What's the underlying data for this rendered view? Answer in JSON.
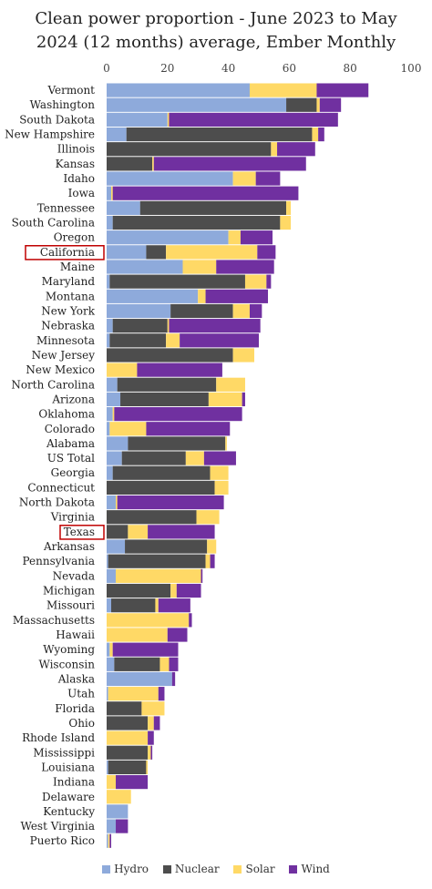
{
  "chart_data": {
    "type": "bar",
    "orientation": "horizontal",
    "stacked": true,
    "title": "Clean power proportion - June 2023 to May 2024 (12 months) average, Ember Monthly",
    "title_lines": [
      "Clean power proportion - June 2023 to May",
      "2024 (12 months) average, Ember Monthly"
    ],
    "xlabel": "",
    "ylabel": "",
    "xlim": [
      0,
      100
    ],
    "xticks": [
      0,
      20,
      40,
      60,
      80,
      100
    ],
    "xaxis_position": "top",
    "grid": false,
    "legend_position": "bottom",
    "highlighted": [
      "California",
      "Texas"
    ],
    "colors": {
      "Hydro": "#8eaadb",
      "Nuclear": "#4d4d4d",
      "Solar": "#ffd966",
      "Wind": "#7030a0",
      "highlight_box": "#c00000"
    },
    "categories": [
      "Vermont",
      "Washington",
      "South Dakota",
      "New Hampshire",
      "Illinois",
      "Kansas",
      "Idaho",
      "Iowa",
      "Tennessee",
      "South Carolina",
      "Oregon",
      "California",
      "Maine",
      "Maryland",
      "Montana",
      "New York",
      "Nebraska",
      "Minnesota",
      "New Jersey",
      "New Mexico",
      "North Carolina",
      "Arizona",
      "Oklahoma",
      "Colorado",
      "Alabama",
      "US Total",
      "Georgia",
      "Connecticut",
      "North Dakota",
      "Virginia",
      "Texas",
      "Arkansas",
      "Pennsylvania",
      "Nevada",
      "Michigan",
      "Missouri",
      "Massachusetts",
      "Hawaii",
      "Wyoming",
      "Wisconsin",
      "Alaska",
      "Utah",
      "Florida",
      "Ohio",
      "Rhode Island",
      "Mississippi",
      "Louisiana",
      "Indiana",
      "Delaware",
      "Kentucky",
      "West Virginia",
      "Puerto Rico"
    ],
    "series": [
      {
        "name": "Hydro",
        "values": [
          47,
          59,
          20,
          6.5,
          0,
          0,
          41.5,
          1.5,
          11,
          2,
          40,
          13,
          25,
          1,
          30,
          21,
          2,
          1,
          0,
          0,
          3.5,
          4.5,
          2,
          1,
          7,
          5,
          2,
          0,
          3,
          0,
          0,
          6,
          0.5,
          3,
          0,
          1.5,
          0,
          0,
          1,
          2.5,
          21.5,
          0.5,
          0,
          0,
          0,
          0,
          0.5,
          0,
          0,
          7,
          3,
          0.5
        ]
      },
      {
        "name": "Nuclear",
        "values": [
          0,
          10,
          0,
          61,
          54,
          15,
          0,
          0,
          48,
          55,
          0,
          6.5,
          0,
          44.5,
          0,
          20.5,
          18,
          18.5,
          41.5,
          0,
          32.5,
          29,
          0,
          0,
          32,
          21,
          32,
          35.5,
          0,
          29.5,
          7,
          27,
          32,
          0,
          21,
          14.5,
          0,
          0,
          0,
          15,
          0,
          0,
          11.5,
          13.5,
          0,
          13.5,
          12.5,
          0,
          0,
          0,
          0,
          0
        ]
      },
      {
        "name": "Solar",
        "values": [
          22,
          1,
          0.5,
          2,
          2,
          0.5,
          7.5,
          0.5,
          1.5,
          3.5,
          4,
          30,
          11,
          7,
          2.5,
          5.5,
          0.5,
          4.5,
          7,
          10,
          9.5,
          11,
          0.5,
          12,
          0.5,
          6,
          6,
          4.5,
          0.5,
          7.5,
          6.5,
          3,
          1.5,
          28,
          2,
          1,
          27,
          20,
          1,
          3,
          0,
          16.5,
          7.5,
          2,
          13.5,
          1,
          0.5,
          3,
          8,
          0,
          0,
          0.5
        ]
      },
      {
        "name": "Wind",
        "values": [
          17,
          7,
          55.5,
          2,
          12.5,
          50,
          8,
          61,
          0,
          0,
          10.5,
          6,
          19,
          1.5,
          20.5,
          4,
          30,
          26,
          0,
          28,
          0,
          1,
          42,
          27.5,
          0,
          10.5,
          0,
          0,
          35,
          0,
          22,
          0,
          1.5,
          0.5,
          8,
          10.5,
          1,
          6.5,
          21.5,
          3,
          1,
          2,
          0,
          2,
          2,
          0.5,
          0,
          10.5,
          0,
          0,
          4,
          0.5
        ]
      }
    ]
  }
}
